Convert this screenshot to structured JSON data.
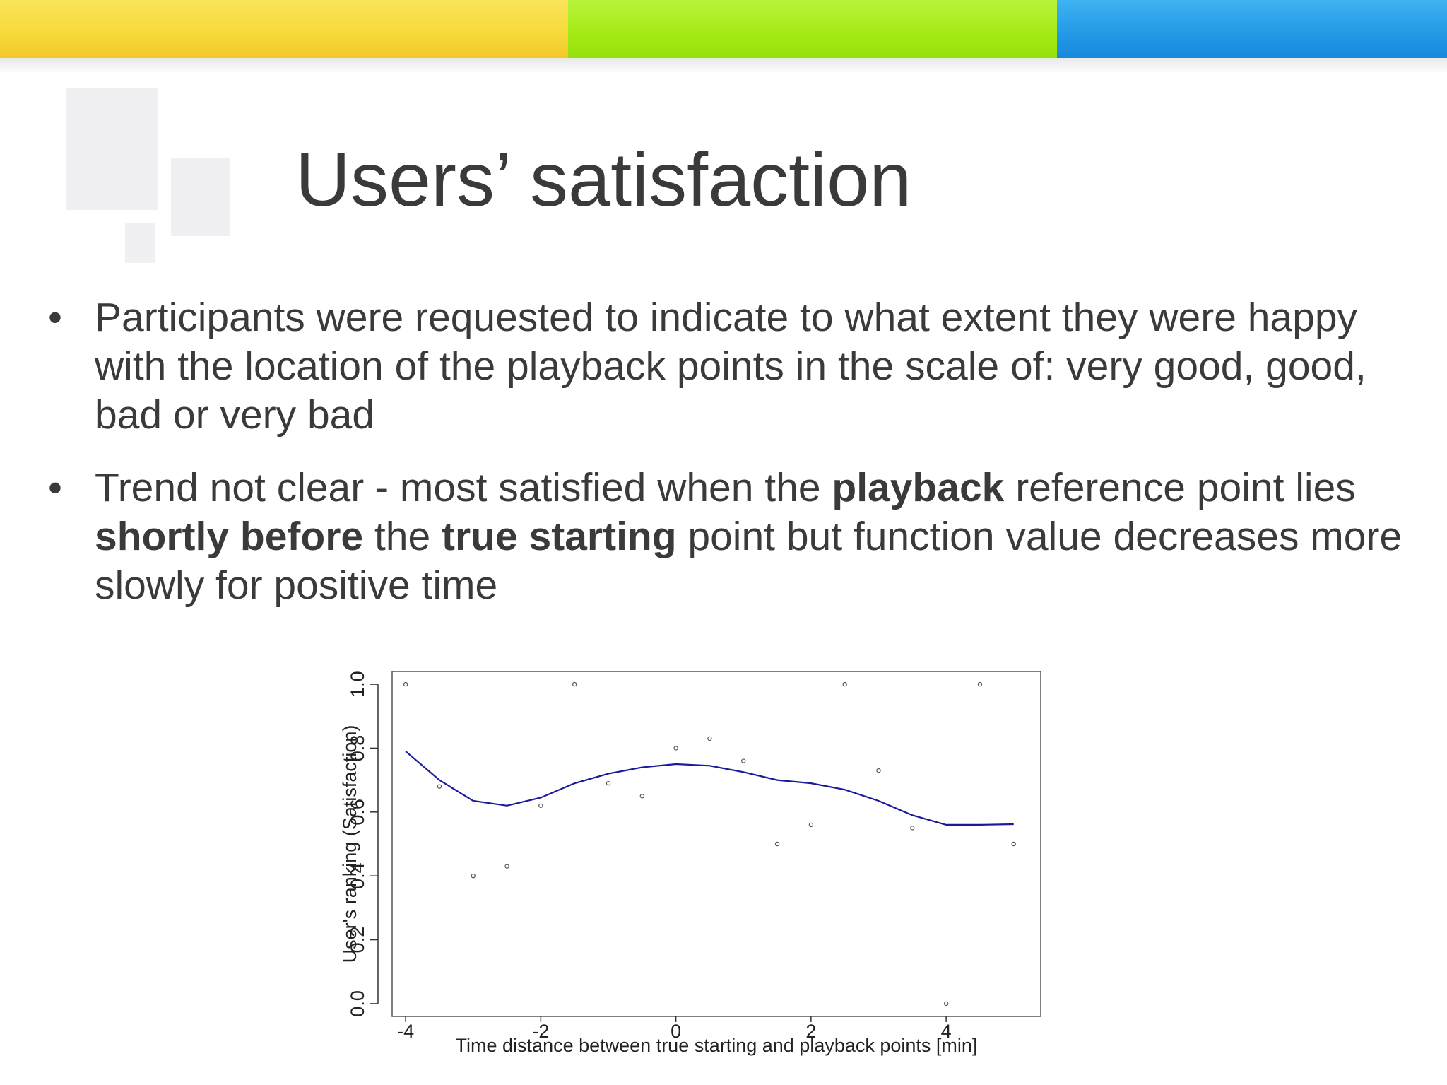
{
  "slide": {
    "title": "Users’ satisfaction",
    "bullets": [
      {
        "parts": [
          {
            "text": "Participants were requested to indicate to what extent they were happy with the location of the playback points in the scale of: very good, good, bad or very bad",
            "bold": false
          }
        ]
      },
      {
        "parts": [
          {
            "text": "Trend not clear - most satisfied when the ",
            "bold": false
          },
          {
            "text": "playback",
            "bold": true
          },
          {
            "text": " reference point lies ",
            "bold": false
          },
          {
            "text": "shortly before",
            "bold": true
          },
          {
            "text": " the ",
            "bold": false
          },
          {
            "text": "true starting",
            "bold": true
          },
          {
            "text": " point but function value decreases more slowly for positive time",
            "bold": false
          }
        ]
      }
    ],
    "bullet_symbol": "•"
  },
  "colors": {
    "band_yellow": "#f7d93a",
    "band_green": "#a3ea14",
    "band_blue": "#2399e6",
    "trend_line": "#1a1a9c",
    "text": "#3a3a3a"
  },
  "chart_data": {
    "type": "scatter",
    "title": "",
    "xlabel": "Time distance between true starting and playback points [min]",
    "ylabel": "User's ranking (Satisfaction)",
    "xlim": [
      -4.2,
      5.4
    ],
    "ylim": [
      -0.04,
      1.04
    ],
    "xticks": [
      -4,
      -2,
      0,
      2,
      4
    ],
    "xtick_labels": [
      "-4",
      "-2",
      "0",
      "2",
      "4"
    ],
    "yticks": [
      0.0,
      0.2,
      0.4,
      0.6,
      0.8,
      1.0
    ],
    "ytick_labels": [
      "0.0",
      "0.2",
      "0.4",
      "0.6",
      "0.8",
      "1.0"
    ],
    "grid": false,
    "series": [
      {
        "kind": "points",
        "x": [
          -4,
          -3.5,
          -3,
          -2.5,
          -2,
          -1.5,
          -1,
          -0.5,
          0,
          0.5,
          1,
          1.5,
          2,
          2.5,
          3,
          3.5,
          4,
          4.5,
          5
        ],
        "y": [
          1.0,
          0.68,
          0.4,
          0.43,
          0.62,
          1.0,
          0.69,
          0.65,
          0.8,
          0.83,
          0.76,
          0.5,
          0.56,
          1.0,
          0.73,
          0.55,
          0.0,
          1.0,
          0.5
        ]
      },
      {
        "kind": "smooth-line",
        "x": [
          -4,
          -3.5,
          -3,
          -2.5,
          -2,
          -1.5,
          -1,
          -0.5,
          0,
          0.5,
          1,
          1.5,
          2,
          2.5,
          3,
          3.5,
          4,
          4.5,
          5
        ],
        "y": [
          0.79,
          0.7,
          0.635,
          0.62,
          0.645,
          0.69,
          0.72,
          0.74,
          0.75,
          0.745,
          0.725,
          0.7,
          0.69,
          0.67,
          0.635,
          0.59,
          0.56,
          0.56,
          0.562
        ]
      }
    ]
  }
}
